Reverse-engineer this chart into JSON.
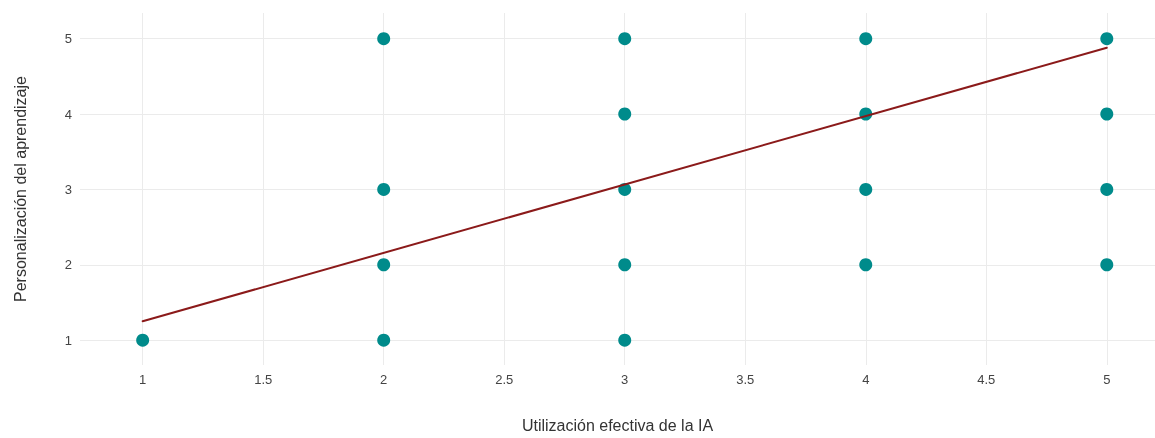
{
  "chart_data": {
    "type": "scatter",
    "xlabel": "Utilización efectiva de la IA",
    "ylabel": "Personalización del aprendizaje",
    "xlim": [
      0.74,
      5.2
    ],
    "xticks": [
      1,
      1.5,
      2,
      2.5,
      3,
      3.5,
      4,
      4.5,
      5
    ],
    "ylim": [
      0.67,
      5.34
    ],
    "yticks": [
      1,
      2,
      3,
      4,
      5
    ],
    "grid": true,
    "marker": "circle",
    "series": [
      {
        "color": "#008b8b",
        "x": [
          1,
          2,
          2,
          2,
          2,
          3,
          3,
          3,
          3,
          3,
          4,
          4,
          4,
          4,
          5,
          5,
          5,
          5
        ],
        "values": [
          1,
          5,
          3,
          2,
          1,
          5,
          4,
          3,
          2,
          1,
          5,
          4,
          3,
          2,
          5,
          4,
          3,
          2
        ]
      },
      {
        "type": "line",
        "color": "#8b1a1a",
        "line_style": "solid",
        "marker": "none",
        "x": [
          1,
          5
        ],
        "values": [
          1.25,
          4.88
        ]
      }
    ]
  }
}
